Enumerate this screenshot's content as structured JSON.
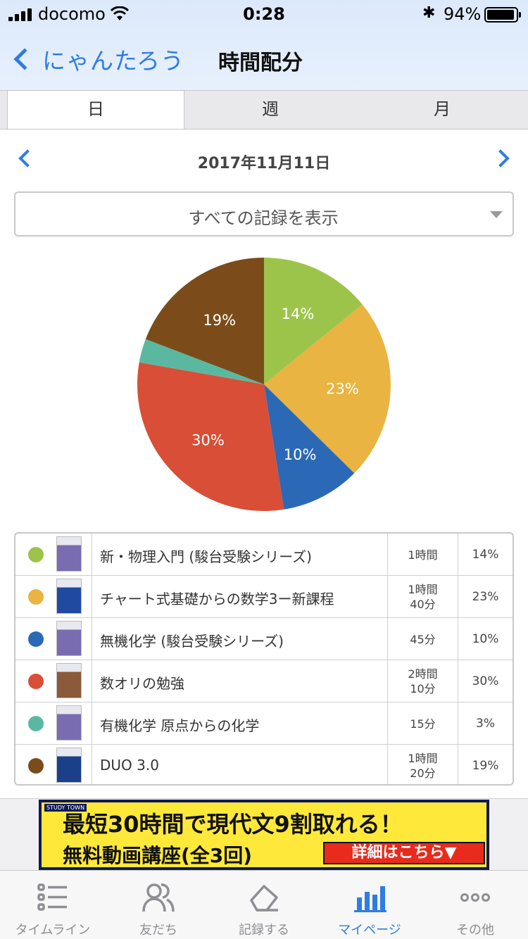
{
  "status_bar": {
    "carrier": "docomo",
    "time": "0:28",
    "battery_percent": "94%",
    "battery_level": 0.94
  },
  "nav": {
    "back_label": "にゃんたろう",
    "title": "時間配分"
  },
  "period_tabs": [
    {
      "label": "日",
      "active": true
    },
    {
      "label": "週",
      "active": false
    },
    {
      "label": "月",
      "active": false
    }
  ],
  "date_label": "2017年11月11日",
  "filter": {
    "label": "すべての記録を表示"
  },
  "chart_data": {
    "type": "pie",
    "start": "top-clockwise",
    "slices": [
      {
        "label": "14%",
        "value": 14,
        "color": "#9dc44a"
      },
      {
        "label": "23%",
        "value": 23,
        "color": "#e9b441"
      },
      {
        "label": "10%",
        "value": 10,
        "color": "#2b69b7"
      },
      {
        "label": "30%",
        "value": 30,
        "color": "#d84e36"
      },
      {
        "label": "",
        "value": 3,
        "color": "#5bb8a0"
      },
      {
        "label": "19%",
        "value": 19,
        "color": "#7b4c1a"
      }
    ]
  },
  "records": [
    {
      "color": "#9dc44a",
      "thumb": "#7a6cb0",
      "title": "新・物理入門 (駿台受験シリーズ)",
      "duration": [
        "1時間"
      ],
      "percent": "14%"
    },
    {
      "color": "#e9b441",
      "thumb": "#1f4aa0",
      "title": "チャート式基礎からの数学3ー新課程",
      "duration": [
        "1時間",
        "40分"
      ],
      "percent": "23%"
    },
    {
      "color": "#2b69b7",
      "thumb": "#7a6cb0",
      "title": "無機化学 (駿台受験シリーズ)",
      "duration": [
        "45分"
      ],
      "percent": "10%"
    },
    {
      "color": "#d84e36",
      "thumb": "#8a5a3a",
      "title": "数オリの勉強",
      "duration": [
        "2時間",
        "10分"
      ],
      "percent": "30%"
    },
    {
      "color": "#5bb8a0",
      "thumb": "#7a6cb0",
      "title": "有機化学 原点からの化学",
      "duration": [
        "15分"
      ],
      "percent": "3%"
    },
    {
      "color": "#7b4c1a",
      "thumb": "#1c3f8a",
      "title": "DUO 3.0",
      "duration": [
        "1時間",
        "20分"
      ],
      "percent": "19%"
    }
  ],
  "ad": {
    "logo": "STUDY TOWN",
    "line1": "最短30時間で現代文9割取れる！",
    "line2": "無料動画講座(全3回)",
    "cta": "詳細はこちら▼"
  },
  "tabbar": [
    {
      "label": "タイムライン",
      "icon": "list-icon",
      "active": false
    },
    {
      "label": "友だち",
      "icon": "friends-icon",
      "active": false
    },
    {
      "label": "記録する",
      "icon": "eraser-icon",
      "active": false
    },
    {
      "label": "マイページ",
      "icon": "bar-chart-icon",
      "active": true
    },
    {
      "label": "その他",
      "icon": "more-dots-icon",
      "active": false
    }
  ]
}
